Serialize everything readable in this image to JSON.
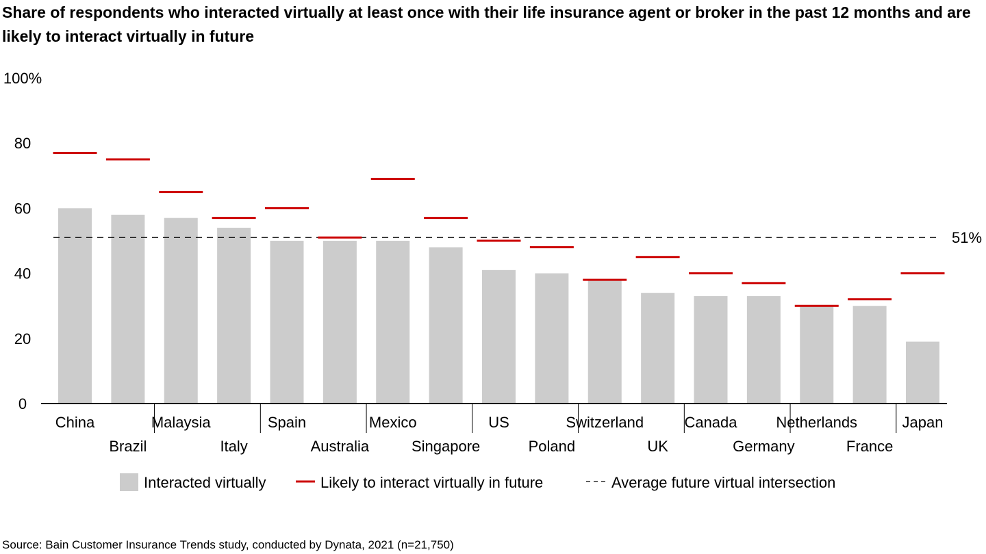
{
  "title": "Share of respondents who interacted virtually at least once with their life insurance agent or broker in the past 12 months and are likely to interact virtually in future",
  "source": "Source: Bain Customer Insurance Trends study, conducted by Dynata, 2021 (n=21,750)",
  "colors": {
    "bar": "#cccccc",
    "marker": "#cc0000",
    "average_line": "#000000",
    "axis": "#000000"
  },
  "chart_data": {
    "type": "bar",
    "categories": [
      "China",
      "Brazil",
      "Malaysia",
      "Italy",
      "Spain",
      "Australia",
      "Mexico",
      "Singapore",
      "US",
      "Poland",
      "Switzerland",
      "UK",
      "Canada",
      "Germany",
      "Netherlands",
      "France",
      "Japan"
    ],
    "series": [
      {
        "name": "Interacted virtually",
        "type": "bar",
        "values": [
          60,
          58,
          57,
          54,
          50,
          50,
          50,
          48,
          41,
          40,
          38,
          34,
          33,
          33,
          30,
          30,
          19
        ]
      },
      {
        "name": "Likely to interact virtually in future",
        "type": "marker",
        "values": [
          77,
          75,
          65,
          57,
          60,
          51,
          69,
          57,
          50,
          48,
          38,
          45,
          40,
          37,
          30,
          32,
          40
        ]
      }
    ],
    "reference_line": {
      "name": "Average future virtual intersection",
      "value": 51,
      "label": "51%"
    },
    "y_ticks": [
      {
        "value": 0,
        "label": "0"
      },
      {
        "value": 20,
        "label": "20"
      },
      {
        "value": 40,
        "label": "40"
      },
      {
        "value": 60,
        "label": "60"
      },
      {
        "value": 80,
        "label": "80"
      },
      {
        "value": 100,
        "label": "100%"
      }
    ],
    "ylim": [
      0,
      100
    ],
    "xlabel": "",
    "ylabel": "",
    "grid": false,
    "legend_position": "bottom-center"
  }
}
